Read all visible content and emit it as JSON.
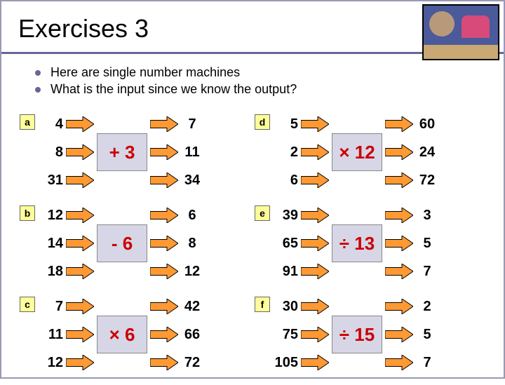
{
  "title": "Exercises 3",
  "bullets": [
    "Here are single number machines",
    "What is the input since we know the output?"
  ],
  "colors": {
    "accent_line": "#666699",
    "label_bg": "#ffff99",
    "op_bg": "#d6d6e7",
    "op_text": "#cc0000",
    "arrow_fill": "#ff9933",
    "arrow_stroke": "#000000"
  },
  "arrow": {
    "width": 40,
    "height": 22
  },
  "groups": [
    {
      "label": "a",
      "inputs": [
        4,
        8,
        31
      ],
      "op": "+ 3",
      "outputs": [
        7,
        11,
        34
      ]
    },
    {
      "label": "d",
      "inputs": [
        5,
        2,
        6
      ],
      "op": "× 12",
      "outputs": [
        60,
        24,
        72
      ]
    },
    {
      "label": "b",
      "inputs": [
        12,
        14,
        18
      ],
      "op": "- 6",
      "outputs": [
        6,
        8,
        12
      ]
    },
    {
      "label": "e",
      "inputs": [
        39,
        65,
        91
      ],
      "op": "÷ 13",
      "outputs": [
        3,
        5,
        7
      ]
    },
    {
      "label": "c",
      "inputs": [
        7,
        11,
        12
      ],
      "op": "× 6",
      "outputs": [
        42,
        66,
        72
      ]
    },
    {
      "label": "f",
      "inputs": [
        30,
        75,
        105
      ],
      "op": "÷ 15",
      "outputs": [
        2,
        5,
        7
      ]
    }
  ]
}
